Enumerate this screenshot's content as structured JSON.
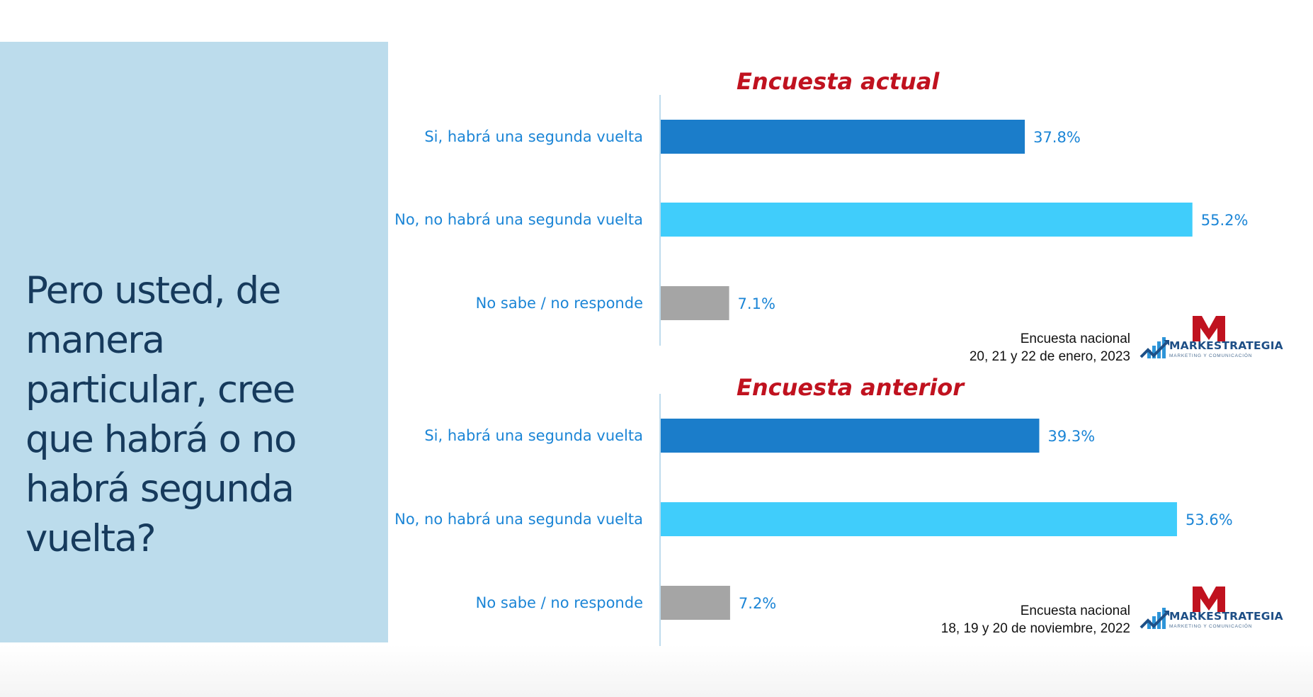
{
  "question": "Pero usted, de manera particular, cree que habrá o no habrá segunda vuelta?",
  "colors": {
    "si": "#1b7dca",
    "no": "#40cdfb",
    "ns": "#a5a5a5",
    "label": "#1b85d6",
    "title": "#c0121f"
  },
  "panels": [
    {
      "title": "Encuesta actual",
      "source_line1": "Encuesta nacional",
      "source_line2": "20, 21 y 22 de enero, 2023",
      "logo": {
        "brand": "MARKESTRATEGIA",
        "tagline": "MARKETING Y COMUNICACIÓN"
      }
    },
    {
      "title": "Encuesta anterior",
      "source_line1": "Encuesta nacional",
      "source_line2": "18, 19 y 20 de noviembre, 2022",
      "logo": {
        "brand": "MARKESTRATEGIA",
        "tagline": "MARKETING Y COMUNICACIÓN"
      }
    }
  ],
  "chart_data": [
    {
      "type": "bar",
      "orientation": "horizontal",
      "title": "Encuesta actual",
      "categories": [
        "Si, habrá una segunda vuelta",
        "No, no habrá una segunda vuelta",
        "No sabe / no responde"
      ],
      "values": [
        37.8,
        55.2,
        7.1
      ],
      "value_labels": [
        "37.8%",
        "55.2%",
        "7.1%"
      ],
      "unit": "%",
      "grid": false
    },
    {
      "type": "bar",
      "orientation": "horizontal",
      "title": "Encuesta anterior",
      "categories": [
        "Si, habrá una segunda vuelta",
        "No, no habrá una segunda vuelta",
        "No sabe / no responde"
      ],
      "values": [
        39.3,
        53.6,
        7.2
      ],
      "value_labels": [
        "39.3%",
        "53.6%",
        "7.2%"
      ],
      "unit": "%",
      "grid": false
    }
  ]
}
